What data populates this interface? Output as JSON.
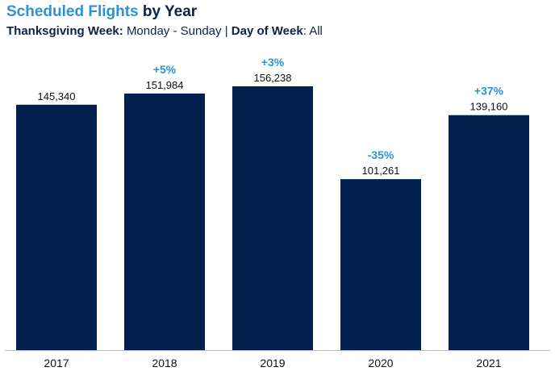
{
  "header": {
    "title_accent": "Scheduled Flights",
    "title_rest": "by Year",
    "sub_label1": "Thanksgiving Week:",
    "sub_value1": "Monday - Sunday",
    "sub_sep": "|",
    "sub_label2": "Day of Week",
    "sub_value2": ": All"
  },
  "colors": {
    "bar": "#03204f",
    "accent": "#2b93d1",
    "title_dark": "#0d2146"
  },
  "chart_data": {
    "type": "bar",
    "title": "Scheduled Flights by Year",
    "subtitle": "Thanksgiving Week: Monday - Sunday | Day of Week: All",
    "categories": [
      "2017",
      "2018",
      "2019",
      "2020",
      "2021"
    ],
    "values": [
      145340,
      151984,
      156238,
      101261,
      139160
    ],
    "value_labels": [
      "145,340",
      "151,984",
      "156,238",
      "101,261",
      "139,160"
    ],
    "change_labels": [
      "",
      "+5%",
      "+3%",
      "-35%",
      "+37%"
    ],
    "ylim": [
      0,
      175000
    ],
    "grid": false,
    "xlabel": "",
    "ylabel": ""
  }
}
